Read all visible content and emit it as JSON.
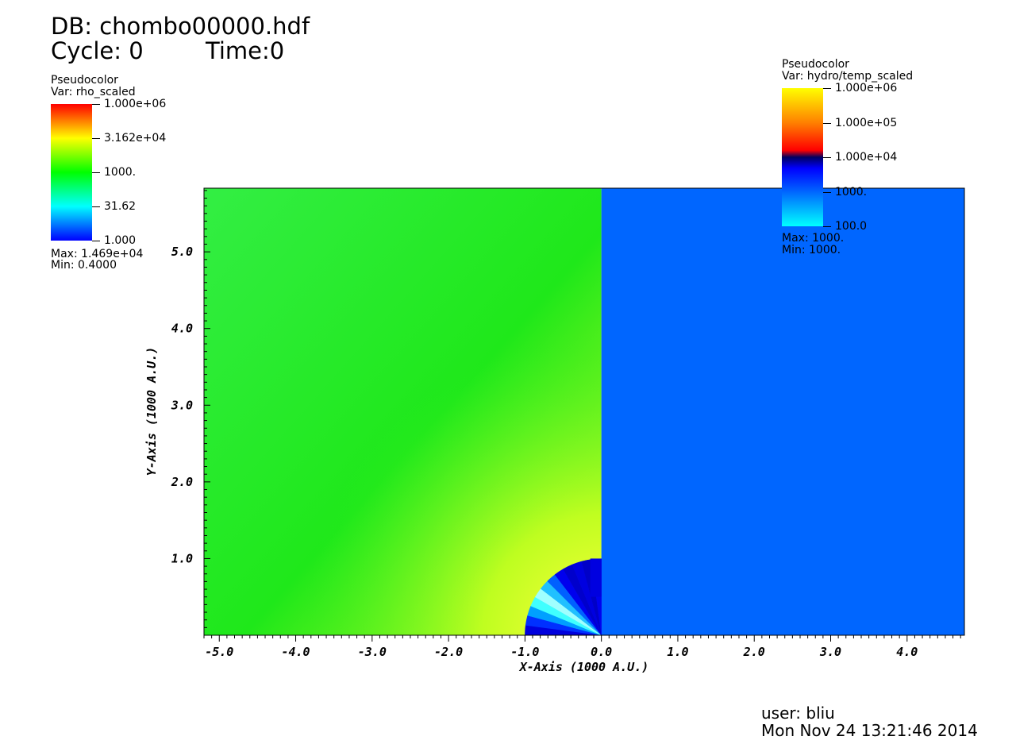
{
  "header": {
    "db": "DB: chombo00000.hdf",
    "cycle": "Cycle: 0",
    "time": "Time:0"
  },
  "legend_left": {
    "title": "Pseudocolor",
    "var": "Var: rho_scaled",
    "ticks": [
      "1.000e+06",
      "3.162e+04",
      "1000.",
      "31.62",
      "1.000"
    ],
    "max": "Max:  1.469e+04",
    "min": "Min:  0.4000",
    "colors": [
      "#ff0000",
      "#ffff00",
      "#00ff00",
      "#00ffff",
      "#0000ff"
    ]
  },
  "legend_right": {
    "title": "Pseudocolor",
    "var": "Var: hydro/temp_scaled",
    "ticks": [
      "1.000e+06",
      "1.000e+05",
      "1.000e+04",
      "1000.",
      "100.0"
    ],
    "max": "Max:  1000.",
    "min": "Min:  1000.",
    "colors": [
      "#ffff00",
      "#ff8000",
      "#ff0000",
      "#000060",
      "#0000ff",
      "#0066ff",
      "#00ffff"
    ]
  },
  "footer": {
    "user": "user: bliu",
    "date": "Mon Nov 24 13:21:46 2014"
  },
  "chart_data": {
    "type": "heatmap",
    "xlabel": "X-Axis (1000 A.U.)",
    "ylabel": "Y-Axis (1000 A.U.)",
    "xlim": [
      -5.2,
      4.75
    ],
    "ylim": [
      0,
      5.83
    ],
    "x_ticks": [
      {
        "value": -5.0,
        "label": "-5.0"
      },
      {
        "value": -4.0,
        "label": "-4.0"
      },
      {
        "value": -3.0,
        "label": "-3.0"
      },
      {
        "value": -2.0,
        "label": "-2.0"
      },
      {
        "value": -1.0,
        "label": "-1.0"
      },
      {
        "value": 0.0,
        "label": "0.0"
      },
      {
        "value": 1.0,
        "label": "1.0"
      },
      {
        "value": 2.0,
        "label": "2.0"
      },
      {
        "value": 3.0,
        "label": "3.0"
      },
      {
        "value": 4.0,
        "label": "4.0"
      }
    ],
    "y_ticks": [
      {
        "value": 1.0,
        "label": "1.0"
      },
      {
        "value": 2.0,
        "label": "2.0"
      },
      {
        "value": 3.0,
        "label": "3.0"
      },
      {
        "value": 4.0,
        "label": "4.0"
      },
      {
        "value": 5.0,
        "label": "5.0"
      }
    ],
    "regions": [
      {
        "name": "rho_scaled",
        "x_range": [
          -5.2,
          0.0
        ],
        "color": "#22ee22"
      },
      {
        "name": "hydro/temp_scaled",
        "x_range": [
          0.0,
          4.75
        ],
        "color": "#0066ff"
      }
    ],
    "inner_radius": 1.0,
    "grid": false
  }
}
